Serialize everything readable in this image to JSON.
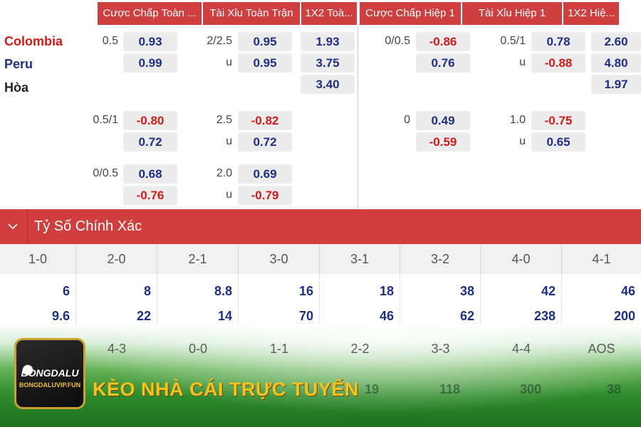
{
  "header": {
    "cols": [
      "Cược Chấp Toàn ...",
      "Tài Xỉu Toàn Trận",
      "1X2 Toà...",
      "Cược Chấp Hiệp 1",
      "Tài Xỉu Hiệp 1",
      "1X2 Hiệ..."
    ]
  },
  "teams": {
    "home": "Colombia",
    "away": "Peru",
    "draw": "Hòa"
  },
  "main_odds": {
    "ft_handicap_line": "0.5",
    "ft_handicap_home": "0.93",
    "ft_handicap_away": "0.99",
    "ft_ou_line": "2/2.5",
    "ft_ou_over": "0.95",
    "ft_ou_under_label": "u",
    "ft_ou_under": "0.95",
    "ft_1x2_home": "1.93",
    "ft_1x2_away": "3.75",
    "ft_1x2_draw": "3.40",
    "h1_handicap_line": "0/0.5",
    "h1_handicap_home": "-0.86",
    "h1_handicap_away": "0.76",
    "h1_ou_line": "0.5/1",
    "h1_ou_over": "0.78",
    "h1_ou_under_label": "u",
    "h1_ou_under": "-0.88",
    "h1_1x2_home": "2.60",
    "h1_1x2_away": "4.80",
    "h1_1x2_draw": "1.97"
  },
  "alt1": {
    "ft_handicap_line": "0.5/1",
    "ft_handicap_home": "-0.80",
    "ft_handicap_away": "0.72",
    "ft_ou_line": "2.5",
    "ft_ou_over": "-0.82",
    "ft_ou_under_label": "u",
    "ft_ou_under": "0.72",
    "h1_handicap_line": "0",
    "h1_handicap_home": "0.49",
    "h1_handicap_away": "-0.59",
    "h1_ou_line": "1.0",
    "h1_ou_over": "-0.75",
    "h1_ou_under_label": "u",
    "h1_ou_under": "0.65"
  },
  "alt2": {
    "ft_handicap_line": "0/0.5",
    "ft_handicap_home": "0.68",
    "ft_handicap_away": "-0.76",
    "ft_ou_line": "2.0",
    "ft_ou_over": "0.69",
    "ft_ou_under_label": "u",
    "ft_ou_under": "-0.79"
  },
  "exact_score": {
    "title": "Tỷ Số Chính Xác",
    "scores": [
      "1-0",
      "2-0",
      "2-1",
      "3-0",
      "3-1",
      "3-2",
      "4-0",
      "4-1"
    ],
    "home_odds": [
      "6",
      "8",
      "8.8",
      "16",
      "18",
      "38",
      "42",
      "46"
    ],
    "away_odds": [
      "9.6",
      "22",
      "14",
      "70",
      "46",
      "62",
      "238",
      "200"
    ],
    "scores2": [
      "4-3",
      "0-0",
      "1-1",
      "2-2",
      "3-3",
      "4-4",
      "AOS"
    ],
    "row2_values": [
      "19",
      "118",
      "300",
      "38"
    ]
  },
  "branding": {
    "logo_brand": "BONGDALU",
    "logo_url": "BONGDALUVIP.FUN",
    "slogan": "KÈO NHÀ CÁI TRỰC TUYẾN"
  },
  "colors": {
    "header_red": "#cf3f3f",
    "odds_blue": "#1f2f86",
    "odds_red": "#d11a1a",
    "slogan_gold": "#f6c21b"
  }
}
